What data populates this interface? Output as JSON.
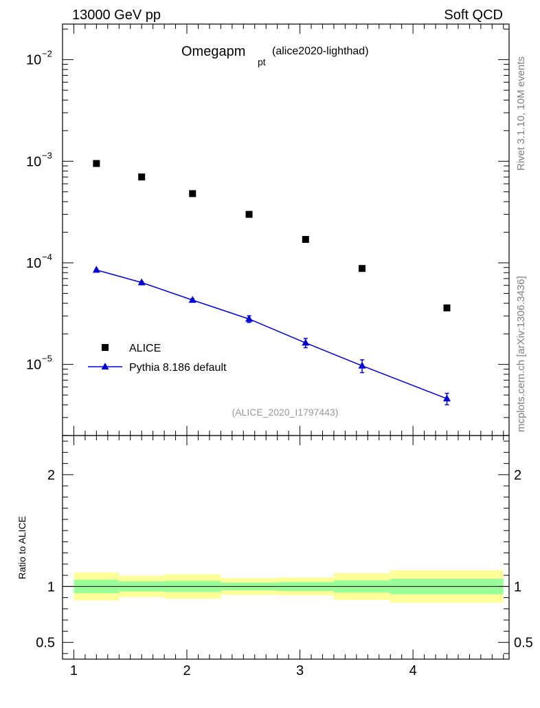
{
  "header": {
    "left": "13000 GeV pp",
    "right": "Soft QCD"
  },
  "side_labels": {
    "rivet": "Rivet 3.1.10,  10M events",
    "mcplots": "mcplots.cern.ch [arXiv:1306.3436]"
  },
  "chart_data": [
    {
      "type": "scatter",
      "title_main": "Omegapm",
      "title_sub": "pt",
      "title_note": "(alice2020-lighthad)",
      "watermark": "(ALICE_2020_I1797443)",
      "xlim": [
        0.9,
        4.85
      ],
      "ylim_log10": [
        -5.7,
        -1.65
      ],
      "ytick_labels": [
        {
          "exp": -2,
          "base": "10",
          "sup": "−2"
        },
        {
          "exp": -3,
          "base": "10",
          "sup": "−3"
        },
        {
          "exp": -4,
          "base": "10",
          "sup": "−4"
        },
        {
          "exp": -5,
          "base": "10",
          "sup": "−5"
        }
      ],
      "series": [
        {
          "name": "ALICE",
          "color": "#000000",
          "marker": "square",
          "x": [
            1.2,
            1.6,
            2.05,
            2.55,
            3.05,
            3.55,
            4.3
          ],
          "y": [
            0.00095,
            0.0007,
            0.00048,
            0.0003,
            0.00017,
            8.8e-05,
            3.6e-05
          ]
        },
        {
          "name": "Pythia 8.186 default",
          "color": "#0000dd",
          "marker": "triangle",
          "x": [
            1.2,
            1.6,
            2.05,
            2.55,
            3.05,
            3.55,
            4.3
          ],
          "y": [
            8.5e-05,
            6.4e-05,
            4.3e-05,
            2.8e-05,
            1.63e-05,
            9.7e-06,
            4.6e-06
          ],
          "yerr_low": [
            1.5e-06,
            1.3e-06,
            1.2e-06,
            2.1e-06,
            1.7e-06,
            1.4e-06,
            6e-07
          ],
          "yerr_high": [
            1.5e-06,
            1.3e-06,
            1.2e-06,
            2.1e-06,
            1.7e-06,
            1.4e-06,
            6e-07
          ]
        }
      ]
    },
    {
      "type": "area",
      "ylabel": "Ratio to ALICE",
      "xlim": [
        0.9,
        4.85
      ],
      "ylim": [
        0.35,
        2.35
      ],
      "xticks": [
        1,
        2,
        3,
        4
      ],
      "xtick_labels": [
        "1",
        "2",
        "3",
        "4"
      ],
      "yticks": [
        0.5,
        1,
        2
      ],
      "ytick_labels": [
        "0.5",
        "1",
        "2"
      ],
      "reference_line": 1,
      "band_colors": {
        "inner": "#99ff99",
        "outer": "#ffff99"
      },
      "bands": [
        {
          "x0": 1.0,
          "x1": 1.4,
          "inner": [
            0.94,
            1.06
          ],
          "outer": [
            0.875,
            1.125
          ]
        },
        {
          "x0": 1.4,
          "x1": 1.8,
          "inner": [
            0.955,
            1.045
          ],
          "outer": [
            0.905,
            1.095
          ]
        },
        {
          "x0": 1.8,
          "x1": 2.3,
          "inner": [
            0.95,
            1.05
          ],
          "outer": [
            0.89,
            1.11
          ]
        },
        {
          "x0": 2.3,
          "x1": 2.8,
          "inner": [
            0.965,
            1.035
          ],
          "outer": [
            0.925,
            1.075
          ]
        },
        {
          "x0": 2.8,
          "x1": 3.3,
          "inner": [
            0.96,
            1.04
          ],
          "outer": [
            0.92,
            1.08
          ]
        },
        {
          "x0": 3.3,
          "x1": 3.8,
          "inner": [
            0.945,
            1.055
          ],
          "outer": [
            0.88,
            1.12
          ]
        },
        {
          "x0": 3.8,
          "x1": 4.8,
          "inner": [
            0.93,
            1.07
          ],
          "outer": [
            0.855,
            1.145
          ]
        }
      ]
    }
  ]
}
